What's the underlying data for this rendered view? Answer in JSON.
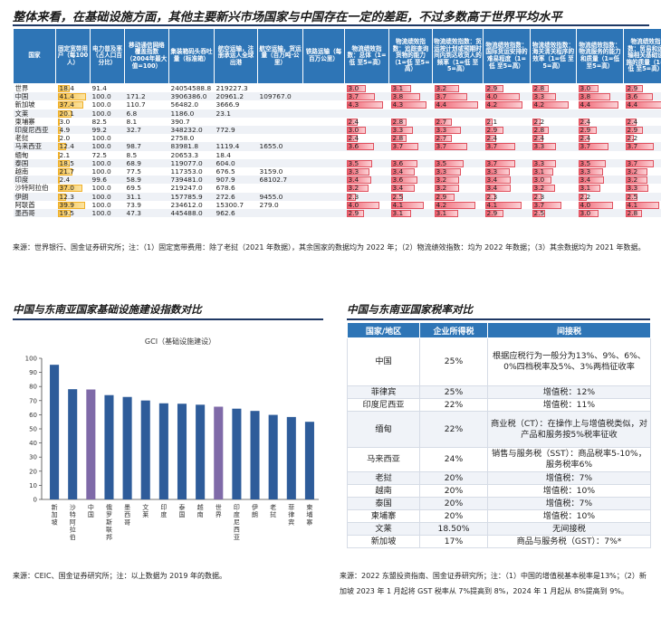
{
  "top_heading": "整体来看，在基础设施方面，其他主要新兴市场国家与中国存在一定的差距，不过多数高于世界平均水平",
  "big_table": {
    "headers": [
      "国家",
      "固定宽带用户（每100人）",
      "电力普及率（占人口百分比）",
      "移动通信网络覆盖指数（2004年最大值=100）",
      "集装箱码头吞吐量（标准箱）",
      "航空运输，注册承运人全球出港",
      "航空运输，货运量（百万吨·公里）",
      "铁路运输（每百万公里）",
      "物流绩效指数：总体（1=低 至5=高）",
      "物流绩效指数：追踪查询货物的能力（1=低 至5=高）",
      "物流绩效指数：货运按计划或预期时间内到达收货人的频率（1=低 至5=高）",
      "物流绩效指数：国际货运安排的难易程度（1=低 至5=高）",
      "物流绩效指数：海关清关程序的效率（1=低 至5=高）",
      "物流绩效指数：物流服务的能力和质量（1=低 至5=高）",
      "物流绩效指数：贸易和运输相关基础设施的质量（1=低 至5=高）"
    ],
    "rows": [
      {
        "country": "世界",
        "c1": "18.4",
        "c2": "91.4",
        "c3": "",
        "c4": "24054588.8",
        "c5": "219227.3",
        "c6": "",
        "c7": "",
        "l": [
          "3.0",
          "3.1",
          "3.2",
          "2.9",
          "2.8",
          "3.0",
          "2.9"
        ]
      },
      {
        "country": "中国",
        "c1": "41.4",
        "c2": "100.0",
        "c3": "171.2",
        "c4": "3906386.0",
        "c5": "20961.2",
        "c6": "109767.0",
        "c7": "",
        "l": [
          "3.7",
          "3.8",
          "3.7",
          "4.0",
          "3.3",
          "3.8",
          "3.6"
        ]
      },
      {
        "country": "新加坡",
        "c1": "37.4",
        "c2": "100.0",
        "c3": "110.7",
        "c4": "56482.0",
        "c5": "3666.9",
        "c6": "",
        "c7": "",
        "l": [
          "4.3",
          "4.3",
          "4.4",
          "4.2",
          "4.2",
          "4.4",
          "4.4"
        ]
      },
      {
        "country": "文莱",
        "c1": "20.1",
        "c2": "100.0",
        "c3": "6.8",
        "c4": "1186.0",
        "c5": "23.1",
        "c6": "",
        "c7": "",
        "l": [
          "",
          "",
          "",
          "",
          "",
          "",
          ""
        ]
      },
      {
        "country": "柬埔寨",
        "c1": "3.0",
        "c2": "82.5",
        "c3": "8.1",
        "c4": "390.7",
        "c5": "",
        "c6": "",
        "c7": "",
        "l": [
          "2.4",
          "2.8",
          "2.7",
          "2.1",
          "2.2",
          "2.4",
          "2.4"
        ]
      },
      {
        "country": "印度尼西亚",
        "c1": "4.9",
        "c2": "99.2",
        "c3": "32.7",
        "c4": "348232.0",
        "c5": "772.9",
        "c6": "",
        "c7": "",
        "l": [
          "3.0",
          "3.3",
          "3.3",
          "2.9",
          "2.8",
          "2.9",
          "2.9"
        ]
      },
      {
        "country": "老挝",
        "c1": "2.0",
        "c2": "100.0",
        "c3": "",
        "c4": "2758.0",
        "c5": "",
        "c6": "",
        "c7": "",
        "l": [
          "2.4",
          "2.8",
          "2.7",
          "2.4",
          "2.4",
          "2.4",
          "2.2"
        ]
      },
      {
        "country": "马来西亚",
        "c1": "12.4",
        "c2": "100.0",
        "c3": "98.7",
        "c4": "83981.8",
        "c5": "1119.4",
        "c6": "1655.0",
        "c7": "",
        "l": [
          "3.6",
          "3.7",
          "3.7",
          "3.7",
          "3.3",
          "3.7",
          "3.7"
        ]
      },
      {
        "country": "缅甸",
        "c1": "2.1",
        "c2": "72.5",
        "c3": "8.5",
        "c4": "20653.3",
        "c5": "18.4",
        "c6": "",
        "c7": "",
        "l": [
          "",
          "",
          "",
          "",
          "",
          "",
          ""
        ]
      },
      {
        "country": "泰国",
        "c1": "18.5",
        "c2": "100.0",
        "c3": "68.9",
        "c4": "119077.0",
        "c5": "604.0",
        "c6": "",
        "c7": "",
        "l": [
          "3.5",
          "3.6",
          "3.5",
          "3.7",
          "3.3",
          "3.5",
          "3.7"
        ]
      },
      {
        "country": "越南",
        "c1": "21.7",
        "c2": "100.0",
        "c3": "77.5",
        "c4": "117353.0",
        "c5": "676.5",
        "c6": "3159.0",
        "c7": "",
        "l": [
          "3.3",
          "3.4",
          "3.3",
          "3.3",
          "3.1",
          "3.3",
          "3.2"
        ]
      },
      {
        "country": "印度",
        "c1": "2.4",
        "c2": "99.6",
        "c3": "58.9",
        "c4": "739481.0",
        "c5": "907.9",
        "c6": "68102.7",
        "c7": "",
        "l": [
          "3.4",
          "3.6",
          "3.2",
          "3.4",
          "3.0",
          "3.4",
          "3.2"
        ]
      },
      {
        "country": "沙特阿拉伯",
        "c1": "37.0",
        "c2": "100.0",
        "c3": "69.5",
        "c4": "219247.0",
        "c5": "678.6",
        "c6": "",
        "c7": "",
        "l": [
          "3.2",
          "3.4",
          "3.2",
          "3.4",
          "3.2",
          "3.1",
          "3.3"
        ]
      },
      {
        "country": "伊朗",
        "c1": "12.3",
        "c2": "100.0",
        "c3": "31.1",
        "c4": "157785.9",
        "c5": "272.6",
        "c6": "9455.0",
        "c7": "",
        "l": [
          "2.3",
          "2.5",
          "2.9",
          "2.3",
          "2.3",
          "2.2",
          "2.5"
        ]
      },
      {
        "country": "阿联酋",
        "c1": "39.9",
        "c2": "100.0",
        "c3": "73.9",
        "c4": "234612.0",
        "c5": "15300.7",
        "c6": "279.0",
        "c7": "",
        "l": [
          "4.0",
          "4.1",
          "4.2",
          "4.1",
          "3.7",
          "4.0",
          "4.1"
        ]
      },
      {
        "country": "墨西哥",
        "c1": "19.5",
        "c2": "100.0",
        "c3": "47.3",
        "c4": "445488.0",
        "c5": "962.6",
        "c6": "",
        "c7": "",
        "l": [
          "2.9",
          "3.1",
          "3.1",
          "2.9",
          "2.5",
          "3.0",
          "2.8"
        ]
      }
    ]
  },
  "big_table_source": "来源：世界银行、国金证券研究所；注：（1）固定宽带费用：除了老挝（2021 年数据），其余国家的数据均为 2022 年；（2）物流绩效指数：均为 2022 年数据；（3）其余数据均为 2021 年数据。",
  "chart_heading": "中国与东南亚国家基础设施建设指数对比",
  "chart_data": {
    "type": "bar",
    "title": "GCI（基础设施建设）",
    "categories": [
      "新加坡",
      "沙特阿拉伯",
      "中国",
      "俄罗斯联邦",
      "墨西哥",
      "文莱",
      "印度",
      "泰国",
      "越南",
      "世界",
      "印度尼西亚",
      "伊朗",
      "老挝",
      "菲律宾",
      "柬埔寨"
    ],
    "values": [
      95.4,
      78.1,
      77.9,
      73.9,
      72.6,
      70.1,
      68.1,
      67.8,
      67.1,
      65.7,
      64.3,
      62.7,
      59.9,
      58.4,
      55.0
    ],
    "highlight_color": "#7f6aa8",
    "bar_color": "#2e5c9a",
    "highlight": [
      "中国",
      "世界"
    ],
    "ylim": [
      0,
      100
    ],
    "yticks": [
      0,
      10,
      20,
      30,
      40,
      50,
      60,
      70,
      80,
      90,
      100
    ]
  },
  "chart_source": "来源：CEIC、国金证券研究所；注：以上数据为 2019 年的数据。",
  "tax_heading": "中国与东南亚国家税率对比",
  "tax_table": {
    "headers": [
      "国家/地区",
      "企业所得税",
      "间接税"
    ],
    "rows": [
      {
        "country": "中国",
        "cit": "25%",
        "vat": "根据应税行为一般分为13%、9%、6%、0%四档税率及5%、3%两档征收率"
      },
      {
        "country": "菲律宾",
        "cit": "25%",
        "vat": "增值税：12%"
      },
      {
        "country": "印度尼西亚",
        "cit": "22%",
        "vat": "增值税：11%"
      },
      {
        "country": "缅甸",
        "cit": "22%",
        "vat": "商业税（CT）：在操作上与增值税类似，对产品和服务按5%税率征收"
      },
      {
        "country": "马来西亚",
        "cit": "24%",
        "vat": "销售与服务税（SST）：商品税率5-10%，服务税率6%"
      },
      {
        "country": "老挝",
        "cit": "20%",
        "vat": "增值税：7%"
      },
      {
        "country": "越南",
        "cit": "20%",
        "vat": "增值税：10%"
      },
      {
        "country": "泰国",
        "cit": "20%",
        "vat": "增值税：7%"
      },
      {
        "country": "柬埔寨",
        "cit": "20%",
        "vat": "增值税：10%"
      },
      {
        "country": "文莱",
        "cit": "18.50%",
        "vat": "无间接税"
      },
      {
        "country": "新加坡",
        "cit": "17%",
        "vat": "商品与服务税（GST）：7%*"
      }
    ]
  },
  "tax_source": "来源：2022 东盟投资指南、国金证券研究所；注：（1）中国的增值税基本税率是13%；（2）新加坡 2023 年 1 月起将 GST 税率从 7%提高到 8%，2024 年 1 月起从 8%提高到 9%。"
}
